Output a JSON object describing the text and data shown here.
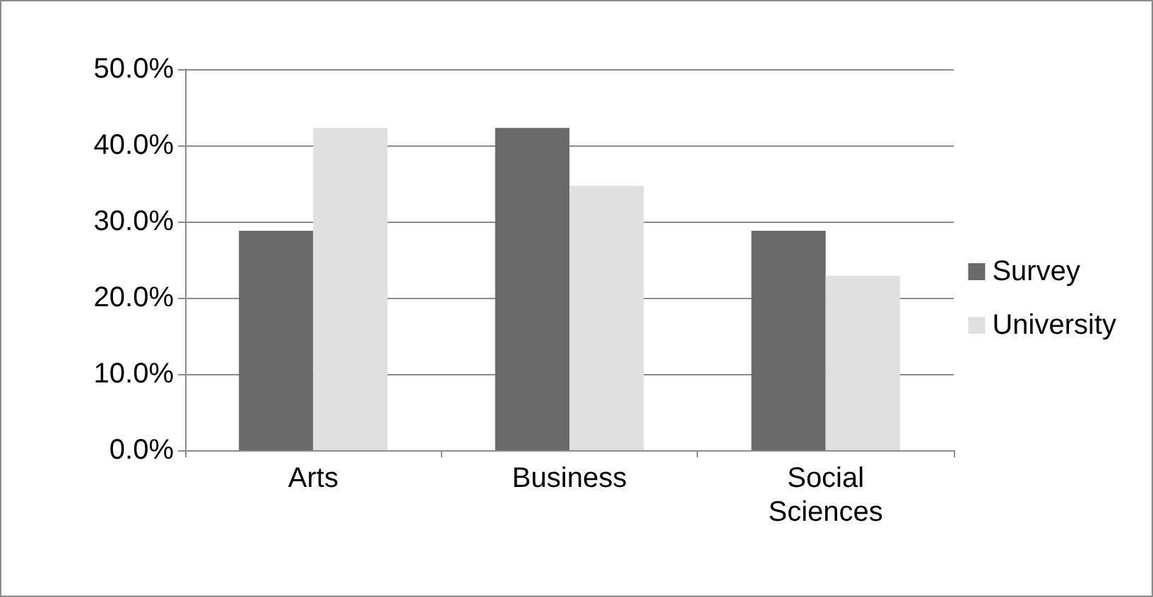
{
  "chart_data": {
    "type": "bar",
    "categories": [
      "Arts",
      "Business",
      "Social\nSciences"
    ],
    "series": [
      {
        "name": "Survey",
        "color": "#6a6a6a",
        "values": [
          28.8,
          42.3,
          28.8
        ]
      },
      {
        "name": "University",
        "color": "#e0e0e0",
        "values": [
          42.3,
          34.7,
          22.9
        ]
      }
    ],
    "ylim": [
      0,
      50
    ],
    "yticks": [
      {
        "value": 0,
        "label": "0.0%"
      },
      {
        "value": 10,
        "label": "10.0%"
      },
      {
        "value": 20,
        "label": "20.0%"
      },
      {
        "value": 30,
        "label": "30.0%"
      },
      {
        "value": 40,
        "label": "40.0%"
      },
      {
        "value": 50,
        "label": "50.0%"
      }
    ],
    "grid": "y",
    "legend": "right"
  }
}
